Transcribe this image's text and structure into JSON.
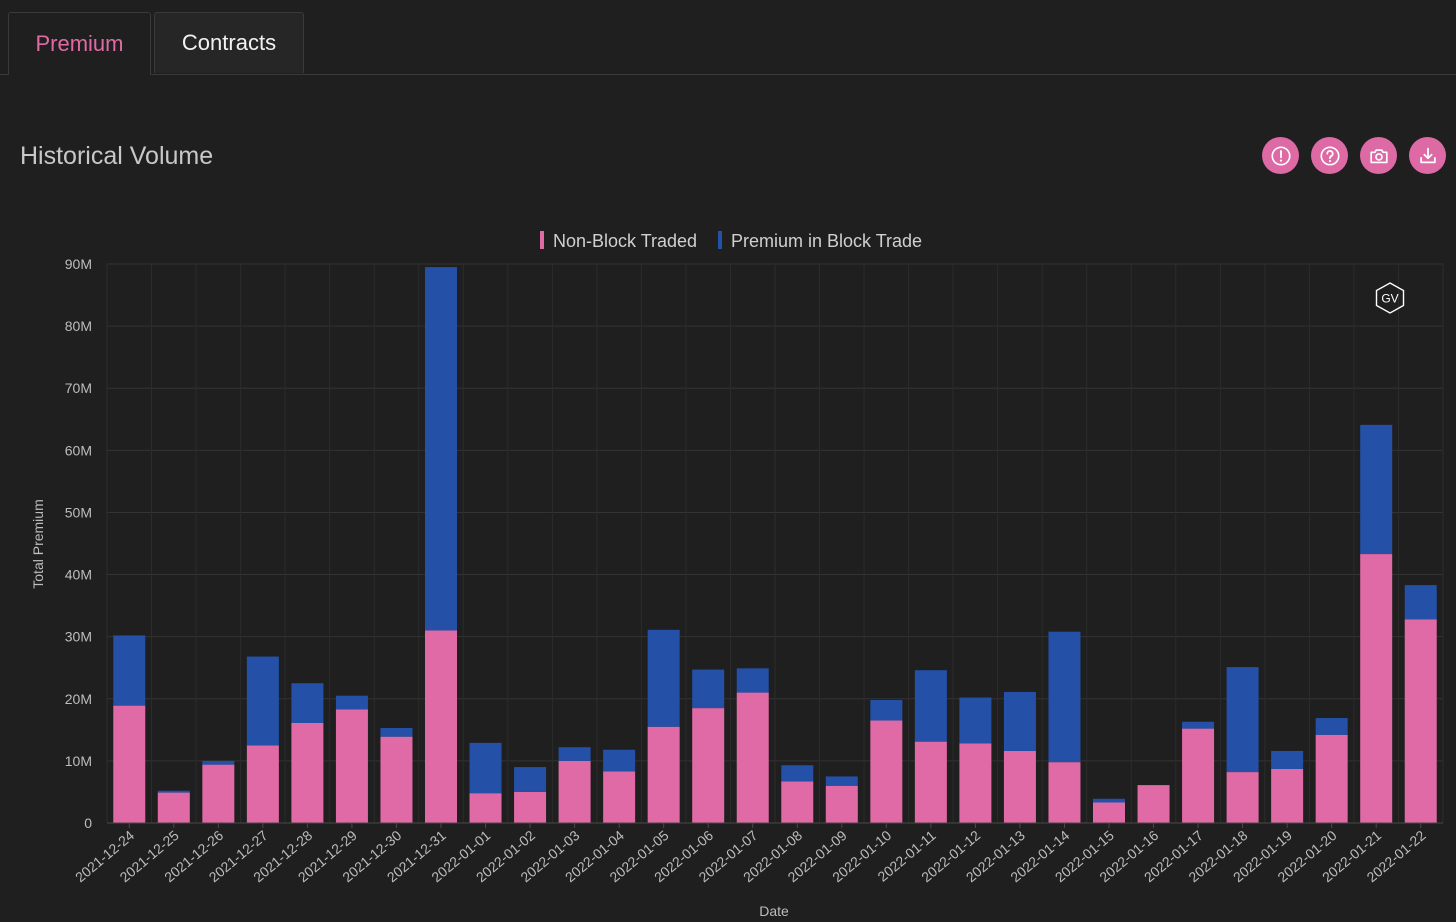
{
  "tabs": [
    {
      "label": "Premium",
      "active": true
    },
    {
      "label": "Contracts",
      "active": false
    }
  ],
  "title": "Historical Volume",
  "toolbar": [
    {
      "name": "info-button",
      "icon": "exclamation-circle-icon"
    },
    {
      "name": "help-button",
      "icon": "question-circle-icon"
    },
    {
      "name": "screenshot-button",
      "icon": "camera-icon"
    },
    {
      "name": "download-button",
      "icon": "download-icon"
    }
  ],
  "watermark": "GV",
  "colors": {
    "non_block": "#e06aa5",
    "block": "#2450a8",
    "accent": "#de6aa5"
  },
  "chart_data": {
    "type": "bar",
    "stacked": true,
    "xlabel": "Date",
    "ylabel": "Total Premium",
    "ylim": [
      0,
      90000000
    ],
    "yticks": [
      0,
      10000000,
      20000000,
      30000000,
      40000000,
      50000000,
      60000000,
      70000000,
      80000000,
      90000000
    ],
    "ytick_labels": [
      "0",
      "10M",
      "20M",
      "30M",
      "40M",
      "50M",
      "60M",
      "70M",
      "80M",
      "90M"
    ],
    "grid": true,
    "legend_position": "top-center",
    "categories": [
      "2021-12-24",
      "2021-12-25",
      "2021-12-26",
      "2021-12-27",
      "2021-12-28",
      "2021-12-29",
      "2021-12-30",
      "2021-12-31",
      "2022-01-01",
      "2022-01-02",
      "2022-01-03",
      "2022-01-04",
      "2022-01-05",
      "2022-01-06",
      "2022-01-07",
      "2022-01-08",
      "2022-01-09",
      "2022-01-10",
      "2022-01-11",
      "2022-01-12",
      "2022-01-13",
      "2022-01-14",
      "2022-01-15",
      "2022-01-16",
      "2022-01-17",
      "2022-01-18",
      "2022-01-19",
      "2022-01-20",
      "2022-01-21",
      "2022-01-22"
    ],
    "series": [
      {
        "name": "Non-Block Traded",
        "color": "#e06aa5",
        "values": [
          18900000,
          4900000,
          9400000,
          12500000,
          16100000,
          18300000,
          13900000,
          31000000,
          4800000,
          5000000,
          10000000,
          8300000,
          15500000,
          18500000,
          21000000,
          6700000,
          6000000,
          16500000,
          13100000,
          12800000,
          11600000,
          9800000,
          3300000,
          6100000,
          15200000,
          8200000,
          8700000,
          14200000,
          43300000,
          32800000
        ]
      },
      {
        "name": "Premium in Block Trade",
        "color": "#2450a8",
        "values": [
          11300000,
          300000,
          600000,
          14300000,
          6400000,
          2200000,
          1400000,
          58500000,
          8100000,
          4000000,
          2200000,
          3500000,
          15600000,
          6200000,
          3900000,
          2600000,
          1500000,
          3300000,
          11500000,
          7400000,
          9500000,
          21000000,
          600000,
          0,
          1100000,
          16900000,
          2900000,
          2700000,
          20800000,
          5500000
        ]
      }
    ]
  }
}
